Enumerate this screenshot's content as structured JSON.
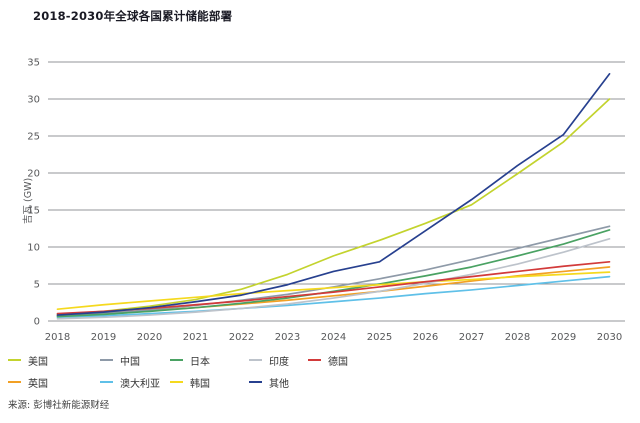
{
  "title": "2018-2030年全球各国累计储能部署",
  "source": "来源: 彭博社新能源财经",
  "colors": {
    "grid": "#939598",
    "axis_text": "#58595b",
    "title_text": "#1a1a24",
    "legend_text": "#333333",
    "source_text": "#414141",
    "background": "#ffffff"
  },
  "chart_data": {
    "type": "line",
    "title": "2018-2030年全球各国累计储能部署",
    "xlabel": "",
    "ylabel": "吉瓦 (GW)",
    "ylim": [
      0,
      35
    ],
    "ytick_step": 5,
    "yticks": [
      0,
      5,
      10,
      15,
      20,
      25,
      30,
      35
    ],
    "grid": "horizontal",
    "legend_position": "bottom",
    "x": [
      2018,
      2019,
      2020,
      2021,
      2022,
      2023,
      2024,
      2025,
      2026,
      2027,
      2028,
      2029,
      2030
    ],
    "series": [
      {
        "id": "us",
        "name": "美国",
        "color": "#c3d32e",
        "values": [
          0.9,
          1.3,
          2.0,
          2.9,
          4.3,
          6.3,
          8.8,
          10.9,
          13.2,
          15.7,
          19.9,
          24.2,
          30.0
        ]
      },
      {
        "id": "uk",
        "name": "英国",
        "color": "#f2a024",
        "values": [
          0.8,
          1.1,
          1.4,
          1.8,
          2.3,
          2.8,
          3.4,
          4.0,
          4.7,
          5.4,
          6.1,
          6.7,
          7.3
        ]
      },
      {
        "id": "china",
        "name": "中国",
        "color": "#8e9aa8",
        "values": [
          0.7,
          1.0,
          1.5,
          2.1,
          2.8,
          3.6,
          4.6,
          5.7,
          6.9,
          8.3,
          9.8,
          11.3,
          12.8
        ]
      },
      {
        "id": "australia",
        "name": "澳大利亚",
        "color": "#5fc0e8",
        "values": [
          0.5,
          0.7,
          1.0,
          1.3,
          1.7,
          2.1,
          2.6,
          3.1,
          3.7,
          4.2,
          4.8,
          5.4,
          6.0
        ]
      },
      {
        "id": "japan",
        "name": "日本",
        "color": "#4aa263",
        "values": [
          0.6,
          0.9,
          1.3,
          1.8,
          2.4,
          3.1,
          4.0,
          5.0,
          6.1,
          7.3,
          8.8,
          10.4,
          12.3
        ]
      },
      {
        "id": "korea",
        "name": "韩国",
        "color": "#f5d91e",
        "values": [
          1.6,
          2.2,
          2.7,
          3.2,
          3.7,
          4.1,
          4.5,
          4.9,
          5.3,
          5.6,
          6.0,
          6.3,
          6.6
        ]
      },
      {
        "id": "india",
        "name": "印度",
        "color": "#bdc3cb",
        "values": [
          0.3,
          0.5,
          0.8,
          1.2,
          1.7,
          2.3,
          3.1,
          4.0,
          5.1,
          6.3,
          7.7,
          9.3,
          11.1
        ]
      },
      {
        "id": "other",
        "name": "其他",
        "color": "#27408f",
        "values": [
          0.8,
          1.2,
          1.8,
          2.6,
          3.5,
          4.9,
          6.7,
          8.0,
          12.2,
          16.4,
          21.0,
          25.2,
          33.4
        ]
      },
      {
        "id": "germany",
        "name": "德国",
        "color": "#d23a3a",
        "values": [
          1.0,
          1.3,
          1.7,
          2.2,
          2.7,
          3.3,
          3.9,
          4.6,
          5.3,
          6.0,
          6.7,
          7.4,
          8.0
        ]
      }
    ]
  }
}
